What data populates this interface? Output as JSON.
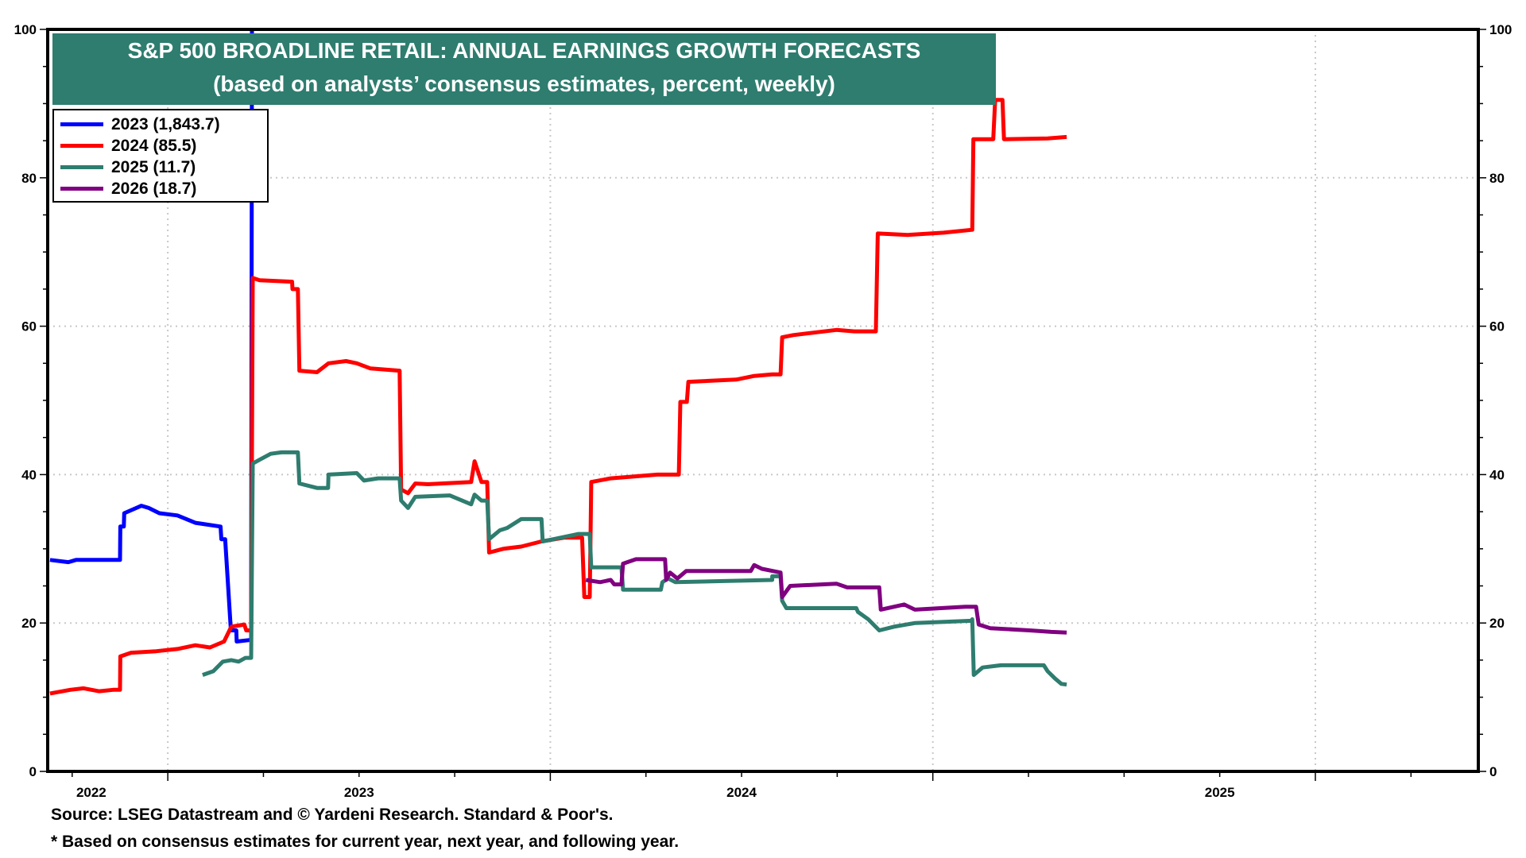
{
  "chart_data": {
    "type": "line",
    "title": "S&P 500 BROADLINE RETAIL: ANNUAL EARNINGS GROWTH FORECASTS",
    "subtitle": "(based on analysts’ consensus estimates, percent, weekly)",
    "xlabel": "",
    "ylabel": "",
    "xlim": [
      2021.686,
      2025.426
    ],
    "ylim": [
      0,
      100
    ],
    "y_ticks": [
      0,
      20,
      40,
      60,
      80,
      100
    ],
    "y_tick_labels": [
      "0",
      "20",
      "40",
      "60",
      "80",
      "100"
    ],
    "y_minor_step": 5,
    "x_year_boundaries": [
      2022,
      2023,
      2024,
      2025
    ],
    "x_tick_labels": [
      {
        "label": "2022",
        "at": 2021.8
      },
      {
        "label": "2023",
        "at": 2022.5
      },
      {
        "label": "2024",
        "at": 2023.5
      },
      {
        "label": "2025",
        "at": 2024.75
      }
    ],
    "x_minor_ticks": [
      2021.75,
      2022.25,
      2022.5,
      2022.75,
      2023.25,
      2023.5,
      2023.75,
      2024.25,
      2024.5,
      2024.75,
      2025.25
    ],
    "grid": true,
    "legend_position": "top-left",
    "series": [
      {
        "name": "2023 (1,843.7)",
        "color": "#0000ff",
        "points": [
          [
            2021.692,
            28.5
          ],
          [
            2021.74,
            28.2
          ],
          [
            2021.76,
            28.5
          ],
          [
            2021.875,
            28.5
          ],
          [
            2021.876,
            33
          ],
          [
            2021.885,
            33
          ],
          [
            2021.886,
            34.8
          ],
          [
            2021.931,
            35.8
          ],
          [
            2021.95,
            35.5
          ],
          [
            2021.978,
            34.8
          ],
          [
            2022.025,
            34.5
          ],
          [
            2022.072,
            33.5
          ],
          [
            2022.138,
            33
          ],
          [
            2022.14,
            31.3
          ],
          [
            2022.15,
            31.3
          ],
          [
            2022.165,
            19
          ],
          [
            2022.179,
            19
          ],
          [
            2022.18,
            17.5
          ],
          [
            2022.213,
            17.7
          ],
          [
            2022.218,
            17.7
          ],
          [
            2022.22,
            100
          ]
        ]
      },
      {
        "name": "2024 (85.5)",
        "color": "#ff0000",
        "points": [
          [
            2021.692,
            10.5
          ],
          [
            2021.745,
            11
          ],
          [
            2021.78,
            11.2
          ],
          [
            2021.82,
            10.8
          ],
          [
            2021.857,
            11
          ],
          [
            2021.875,
            11
          ],
          [
            2021.876,
            15.5
          ],
          [
            2021.904,
            16
          ],
          [
            2021.97,
            16.2
          ],
          [
            2022.025,
            16.5
          ],
          [
            2022.072,
            17
          ],
          [
            2022.11,
            16.7
          ],
          [
            2022.147,
            17.5
          ],
          [
            2022.166,
            19.5
          ],
          [
            2022.2,
            19.8
          ],
          [
            2022.205,
            19
          ],
          [
            2022.218,
            19
          ],
          [
            2022.222,
            66.5
          ],
          [
            2022.24,
            66.2
          ],
          [
            2022.325,
            66
          ],
          [
            2022.326,
            65
          ],
          [
            2022.34,
            65
          ],
          [
            2022.344,
            54
          ],
          [
            2022.39,
            53.8
          ],
          [
            2022.42,
            55
          ],
          [
            2022.466,
            55.3
          ],
          [
            2022.494,
            55
          ],
          [
            2022.53,
            54.3
          ],
          [
            2022.606,
            54
          ],
          [
            2022.61,
            38
          ],
          [
            2022.628,
            37.5
          ],
          [
            2022.647,
            38.8
          ],
          [
            2022.68,
            38.7
          ],
          [
            2022.793,
            39
          ],
          [
            2022.802,
            41.8
          ],
          [
            2022.82,
            39
          ],
          [
            2022.835,
            39
          ],
          [
            2022.84,
            29.5
          ],
          [
            2022.877,
            30
          ],
          [
            2022.924,
            30.3
          ],
          [
            2022.977,
            31
          ],
          [
            2023.036,
            31.5
          ],
          [
            2023.083,
            31.5
          ],
          [
            2023.089,
            23.5
          ],
          [
            2023.103,
            23.5
          ],
          [
            2023.107,
            39
          ],
          [
            2023.158,
            39.5
          ],
          [
            2023.28,
            40
          ],
          [
            2023.336,
            40
          ],
          [
            2023.34,
            49.8
          ],
          [
            2023.357,
            49.8
          ],
          [
            2023.361,
            52.5
          ],
          [
            2023.486,
            52.8
          ],
          [
            2023.533,
            53.3
          ],
          [
            2023.58,
            53.5
          ],
          [
            2023.602,
            53.5
          ],
          [
            2023.606,
            58.5
          ],
          [
            2023.635,
            58.8
          ],
          [
            2023.748,
            59.5
          ],
          [
            2023.795,
            59.3
          ],
          [
            2023.851,
            59.3
          ],
          [
            2023.856,
            72.5
          ],
          [
            2023.935,
            72.3
          ],
          [
            2024.028,
            72.6
          ],
          [
            2024.103,
            73
          ],
          [
            2024.106,
            85.2
          ],
          [
            2024.158,
            85.2
          ],
          [
            2024.163,
            90.5
          ],
          [
            2024.182,
            90.5
          ],
          [
            2024.186,
            85.2
          ],
          [
            2024.3,
            85.3
          ],
          [
            2024.35,
            85.5
          ]
        ]
      },
      {
        "name": "2025 (11.7)",
        "color": "#2e7d6f",
        "points": [
          [
            2022.091,
            13
          ],
          [
            2022.119,
            13.5
          ],
          [
            2022.144,
            14.8
          ],
          [
            2022.166,
            15
          ],
          [
            2022.185,
            14.8
          ],
          [
            2022.203,
            15.3
          ],
          [
            2022.218,
            15.3
          ],
          [
            2022.222,
            41.5
          ],
          [
            2022.24,
            42
          ],
          [
            2022.269,
            42.8
          ],
          [
            2022.297,
            43
          ],
          [
            2022.34,
            43
          ],
          [
            2022.344,
            38.8
          ],
          [
            2022.39,
            38.2
          ],
          [
            2022.419,
            38.2
          ],
          [
            2022.42,
            40
          ],
          [
            2022.494,
            40.2
          ],
          [
            2022.513,
            39.2
          ],
          [
            2022.55,
            39.5
          ],
          [
            2022.606,
            39.5
          ],
          [
            2022.61,
            36.5
          ],
          [
            2022.628,
            35.5
          ],
          [
            2022.647,
            37
          ],
          [
            2022.737,
            37.2
          ],
          [
            2022.793,
            36
          ],
          [
            2022.802,
            37.3
          ],
          [
            2022.82,
            36.5
          ],
          [
            2022.835,
            36.5
          ],
          [
            2022.84,
            31.3
          ],
          [
            2022.868,
            32.5
          ],
          [
            2022.887,
            32.8
          ],
          [
            2022.924,
            34
          ],
          [
            2022.977,
            34
          ],
          [
            2022.98,
            31
          ],
          [
            2023.008,
            31.3
          ],
          [
            2023.074,
            32
          ],
          [
            2023.103,
            32
          ],
          [
            2023.107,
            27.5
          ],
          [
            2023.186,
            27.5
          ],
          [
            2023.19,
            24.5
          ],
          [
            2023.289,
            24.5
          ],
          [
            2023.293,
            25.5
          ],
          [
            2023.308,
            26
          ],
          [
            2023.327,
            25.5
          ],
          [
            2023.58,
            25.8
          ],
          [
            2023.58,
            26.3
          ],
          [
            2023.602,
            26.3
          ],
          [
            2023.606,
            23
          ],
          [
            2023.617,
            22
          ],
          [
            2023.8,
            22
          ],
          [
            2023.804,
            21.5
          ],
          [
            2023.831,
            20.5
          ],
          [
            2023.86,
            19
          ],
          [
            2023.898,
            19.5
          ],
          [
            2023.954,
            20
          ],
          [
            2024.1,
            20.3
          ],
          [
            2024.103,
            20.5
          ],
          [
            2024.107,
            13
          ],
          [
            2024.13,
            14
          ],
          [
            2024.178,
            14.3
          ],
          [
            2024.29,
            14.3
          ],
          [
            2024.3,
            13.5
          ],
          [
            2024.32,
            12.5
          ],
          [
            2024.336,
            11.8
          ],
          [
            2024.35,
            11.7
          ]
        ]
      },
      {
        "name": "2026 (18.7)",
        "color": "#800080",
        "points": [
          [
            2023.093,
            25.8
          ],
          [
            2023.13,
            25.5
          ],
          [
            2023.158,
            25.8
          ],
          [
            2023.167,
            25.2
          ],
          [
            2023.186,
            25.2
          ],
          [
            2023.19,
            28
          ],
          [
            2023.224,
            28.6
          ],
          [
            2023.3,
            28.6
          ],
          [
            2023.303,
            25.8
          ],
          [
            2023.313,
            26.8
          ],
          [
            2023.332,
            26
          ],
          [
            2023.355,
            27
          ],
          [
            2023.524,
            27
          ],
          [
            2023.533,
            27.8
          ],
          [
            2023.553,
            27.3
          ],
          [
            2023.602,
            26.8
          ],
          [
            2023.606,
            23.5
          ],
          [
            2023.627,
            25
          ],
          [
            2023.748,
            25.3
          ],
          [
            2023.776,
            24.8
          ],
          [
            2023.86,
            24.8
          ],
          [
            2023.864,
            21.8
          ],
          [
            2023.925,
            22.5
          ],
          [
            2023.953,
            21.8
          ],
          [
            2024.085,
            22.2
          ],
          [
            2024.113,
            22.2
          ],
          [
            2024.12,
            19.8
          ],
          [
            2024.15,
            19.3
          ],
          [
            2024.253,
            19
          ],
          [
            2024.31,
            18.8
          ],
          [
            2024.35,
            18.7
          ]
        ]
      }
    ],
    "legend": [
      {
        "label": "2023 (1,843.7)",
        "color": "#0000ff"
      },
      {
        "label": "2024 (85.5)",
        "color": "#ff0000"
      },
      {
        "label": "2025 (11.7)",
        "color": "#2e7d6f"
      },
      {
        "label": "2026 (18.7)",
        "color": "#800080"
      }
    ],
    "source": "Source: LSEG Datastream and © Yardeni Research. Standard & Poor's.",
    "footnote": "* Based on consensus estimates for current year, next year, and following year."
  }
}
